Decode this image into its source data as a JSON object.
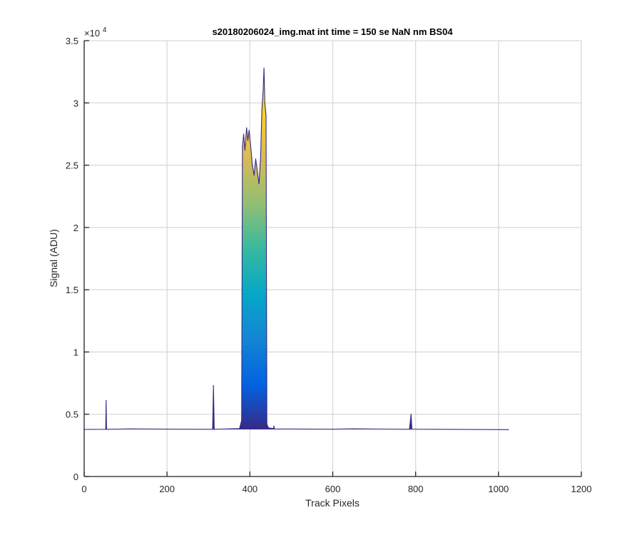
{
  "chart_data": {
    "type": "line",
    "title": "s20180206024_img.mat int time = 150 se  NaN nm BS04",
    "xlabel": "Track Pixels",
    "ylabel": "Signal (ADU)",
    "xlim": [
      0,
      1200
    ],
    "ylim": [
      0,
      35000
    ],
    "x_ticks": [
      "0",
      "200",
      "400",
      "600",
      "800",
      "1000",
      "1200"
    ],
    "y_ticks": [
      "0",
      "0.5",
      "1",
      "1.5",
      "2",
      "2.5",
      "3",
      "3.5"
    ],
    "y_exponent_label": "×10",
    "y_exponent_power": "4",
    "grid": true,
    "colormap": [
      "#352a87",
      "#0363e1",
      "#1485d4",
      "#06a7c6",
      "#38b99e",
      "#92bf73",
      "#d9ba56",
      "#fcce2e",
      "#f9fb0e"
    ],
    "series": [
      {
        "baseline": 3780,
        "x_end": 1024,
        "points": [
          {
            "x": 0,
            "y": 3780
          },
          {
            "x": 52,
            "y": 3790
          },
          {
            "x": 53,
            "y": 6100
          },
          {
            "x": 54,
            "y": 3790
          },
          {
            "x": 110,
            "y": 3820
          },
          {
            "x": 310,
            "y": 3790
          },
          {
            "x": 312,
            "y": 7300
          },
          {
            "x": 314,
            "y": 3790
          },
          {
            "x": 375,
            "y": 3850
          },
          {
            "x": 380,
            "y": 4500
          },
          {
            "x": 382,
            "y": 26500
          },
          {
            "x": 385,
            "y": 27500
          },
          {
            "x": 388,
            "y": 26200
          },
          {
            "x": 392,
            "y": 28000
          },
          {
            "x": 395,
            "y": 27000
          },
          {
            "x": 398,
            "y": 27800
          },
          {
            "x": 402,
            "y": 26500
          },
          {
            "x": 406,
            "y": 25000
          },
          {
            "x": 410,
            "y": 24200
          },
          {
            "x": 414,
            "y": 25500
          },
          {
            "x": 418,
            "y": 24500
          },
          {
            "x": 422,
            "y": 23500
          },
          {
            "x": 426,
            "y": 25800
          },
          {
            "x": 429,
            "y": 29500
          },
          {
            "x": 432,
            "y": 31000
          },
          {
            "x": 434,
            "y": 32800
          },
          {
            "x": 436,
            "y": 30000
          },
          {
            "x": 439,
            "y": 29000
          },
          {
            "x": 441,
            "y": 4200
          },
          {
            "x": 445,
            "y": 3900
          },
          {
            "x": 457,
            "y": 3850
          },
          {
            "x": 458,
            "y": 4050
          },
          {
            "x": 459,
            "y": 3820
          },
          {
            "x": 600,
            "y": 3800
          },
          {
            "x": 650,
            "y": 3830
          },
          {
            "x": 785,
            "y": 3790
          },
          {
            "x": 789,
            "y": 5000
          },
          {
            "x": 791,
            "y": 3800
          },
          {
            "x": 1024,
            "y": 3760
          }
        ]
      }
    ]
  }
}
